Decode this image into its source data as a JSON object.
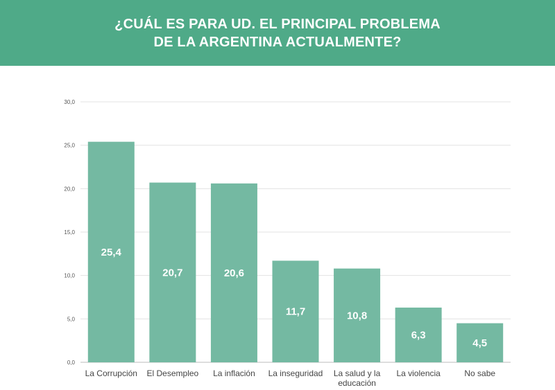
{
  "header": {
    "title_line1": "¿CUÁL ES PARA UD. EL PRINCIPAL PROBLEMA",
    "title_line2": "DE LA ARGENTINA ACTUALMENTE?"
  },
  "colors": {
    "header_bg": "#4faa88",
    "bar": "#74b9a2"
  },
  "chart_data": {
    "type": "bar",
    "title": "¿CUÁL ES PARA UD. EL PRINCIPAL PROBLEMA DE LA ARGENTINA ACTUALMENTE?",
    "categories": [
      [
        "La Corrupción"
      ],
      [
        "El Desempleo"
      ],
      [
        "La inflación"
      ],
      [
        "La inseguridad"
      ],
      [
        "La salud y la",
        "educación"
      ],
      [
        "La violencia"
      ],
      [
        "No sabe"
      ]
    ],
    "values": [
      25.4,
      20.7,
      20.6,
      11.7,
      10.8,
      6.3,
      4.5
    ],
    "value_labels": [
      "25,4",
      "20,7",
      "20,6",
      "11,7",
      "10,8",
      "6,3",
      "4,5"
    ],
    "yticks": [
      0,
      5,
      10,
      15,
      20,
      25,
      30
    ],
    "ytick_labels": [
      "0,0",
      "5,0",
      "10,0",
      "15,0",
      "20,0",
      "25,0",
      "30,0"
    ],
    "ylim": [
      0,
      30
    ],
    "xlabel": "",
    "ylabel": "",
    "grid": true,
    "legend": "none"
  }
}
